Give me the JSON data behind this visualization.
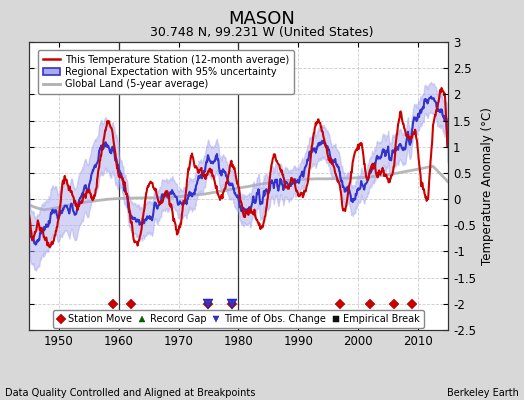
{
  "title": "MASON",
  "subtitle": "30.748 N, 99.231 W (United States)",
  "ylabel": "Temperature Anomaly (°C)",
  "footer_left": "Data Quality Controlled and Aligned at Breakpoints",
  "footer_right": "Berkeley Earth",
  "xlim": [
    1945,
    2015
  ],
  "ylim": [
    -2.5,
    3.0
  ],
  "yticks_right": [
    -2.5,
    -2,
    -1.5,
    -1,
    -0.5,
    0,
    0.5,
    1,
    1.5,
    2,
    2.5,
    3
  ],
  "yticks_left": [
    -2.5,
    -2,
    -1.5,
    -1,
    -0.5,
    0,
    0.5,
    1,
    1.5,
    2,
    2.5,
    3
  ],
  "xticks": [
    1950,
    1960,
    1970,
    1980,
    1990,
    2000,
    2010
  ],
  "legend_items": [
    {
      "label": "This Temperature Station (12-month average)",
      "color": "#cc0000",
      "lw": 1.5
    },
    {
      "label": "Regional Expectation with 95% uncertainty",
      "color": "#3333cc",
      "lw": 1.5
    },
    {
      "label": "Global Land (5-year average)",
      "color": "#b0b0b0",
      "lw": 2.0
    }
  ],
  "marker_legend": [
    {
      "label": "Station Move",
      "marker": "D",
      "color": "#cc0000"
    },
    {
      "label": "Record Gap",
      "marker": "^",
      "color": "#006600"
    },
    {
      "label": "Time of Obs. Change",
      "marker": "v",
      "color": "#3333cc"
    },
    {
      "label": "Empirical Break",
      "marker": "s",
      "color": "#000000"
    }
  ],
  "station_moves": [
    1959,
    1962,
    1975,
    1979,
    1997,
    2002,
    2006,
    2009
  ],
  "obs_changes": [
    1975,
    1979
  ],
  "plot_bg": "#ffffff",
  "fig_bg": "#d8d8d8",
  "grid_color": "#cccccc",
  "grid_style": "--",
  "vline_color": "#333333",
  "vlines": [
    1960,
    1980
  ],
  "uncertainty_color": "#aaaaee",
  "uncertainty_alpha": 0.5,
  "marker_y": -2.0,
  "marker_size": 5
}
